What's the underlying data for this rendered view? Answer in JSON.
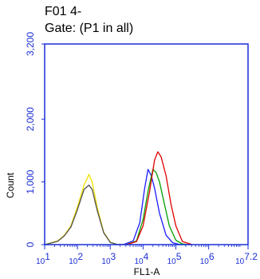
{
  "chart_data": {
    "type": "line",
    "title_lines": [
      "F01 4-",
      "Gate: (P1 in all)"
    ],
    "xlabel": "FL1-A",
    "ylabel": "Count",
    "xscale": "log",
    "xlim": [
      1,
      7.2
    ],
    "ylim": [
      0,
      3200
    ],
    "yticks": [
      0,
      1000,
      2000,
      3200
    ],
    "ytick_labels": [
      "0",
      "1,000",
      "2,000",
      "3,200"
    ],
    "xticks": [
      1,
      2,
      3,
      4,
      5,
      6,
      7.2
    ],
    "xtick_labels": [
      {
        "base": "10",
        "exp": "1"
      },
      {
        "base": "10",
        "exp": "2"
      },
      {
        "base": "10",
        "exp": "3"
      },
      {
        "base": "10",
        "exp": "4"
      },
      {
        "base": "10",
        "exp": "5"
      },
      {
        "base": "10",
        "exp": "6"
      },
      {
        "base": "10",
        "exp": "7.2"
      }
    ],
    "grid": false,
    "colors": {
      "axis_frame": "#1a2fd6",
      "tick_labels": "#1a2fd6",
      "title": "#000000"
    },
    "series": [
      {
        "color": "#f0e000",
        "x": [
          1.0,
          1.2,
          1.4,
          1.6,
          1.8,
          2.0,
          2.2,
          2.35,
          2.45,
          2.6,
          2.8,
          3.0,
          3.2,
          3.5
        ],
        "y": [
          0,
          30,
          60,
          150,
          300,
          600,
          950,
          1120,
          1000,
          600,
          200,
          40,
          5,
          0
        ]
      },
      {
        "color": "#505050",
        "x": [
          1.0,
          1.2,
          1.4,
          1.6,
          1.8,
          2.0,
          2.2,
          2.35,
          2.45,
          2.6,
          2.8,
          3.0,
          3.2,
          3.5
        ],
        "y": [
          0,
          25,
          55,
          140,
          280,
          560,
          880,
          950,
          880,
          550,
          190,
          35,
          5,
          0
        ]
      },
      {
        "color": "#1a1aff",
        "x": [
          3.4,
          3.7,
          3.9,
          4.05,
          4.15,
          4.25,
          4.35,
          4.5,
          4.7,
          4.9,
          5.1,
          5.3
        ],
        "y": [
          0,
          60,
          350,
          900,
          1200,
          1100,
          900,
          500,
          150,
          30,
          5,
          0
        ]
      },
      {
        "color": "#00a000",
        "x": [
          3.5,
          3.8,
          4.0,
          4.15,
          4.3,
          4.4,
          4.5,
          4.65,
          4.8,
          5.0,
          5.2,
          5.4
        ],
        "y": [
          0,
          60,
          400,
          850,
          1200,
          1150,
          1000,
          650,
          300,
          70,
          10,
          0
        ]
      },
      {
        "color": "#e00000",
        "x": [
          3.5,
          3.8,
          4.0,
          4.2,
          4.35,
          4.45,
          4.55,
          4.7,
          4.85,
          5.0,
          5.2,
          5.5
        ],
        "y": [
          0,
          50,
          300,
          850,
          1350,
          1480,
          1400,
          1100,
          650,
          300,
          50,
          0
        ]
      }
    ]
  }
}
